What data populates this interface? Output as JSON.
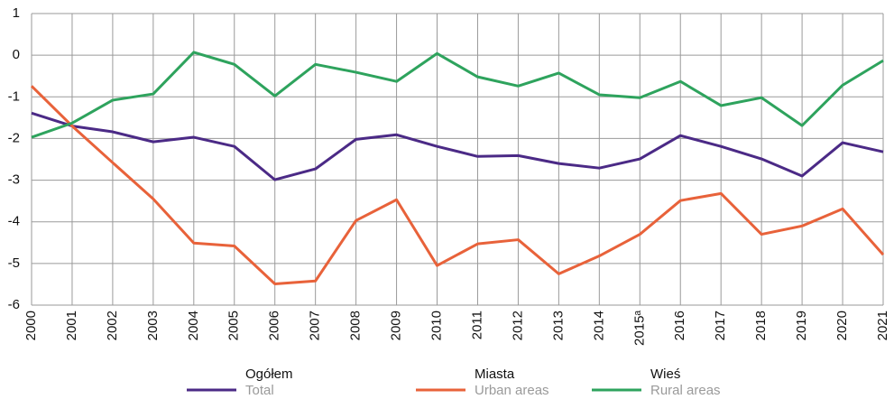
{
  "chart_data": {
    "type": "line",
    "categories": [
      "2000",
      "2001",
      "2002",
      "2003",
      "2004",
      "2005",
      "2006",
      "2007",
      "2008",
      "2009",
      "2010",
      "2011",
      "2012",
      "2013",
      "2014",
      "2015ᵃ",
      "2016",
      "2017",
      "2018",
      "2019",
      "2020",
      "2021"
    ],
    "series": [
      {
        "name": "Ogółem",
        "name_en": "Total",
        "color": "#4b2a86",
        "values": [
          -1.39,
          -1.7,
          -1.84,
          -2.08,
          -1.97,
          -2.19,
          -2.99,
          -2.73,
          -2.02,
          -1.91,
          -2.19,
          -2.43,
          -2.41,
          -2.6,
          -2.71,
          -2.49,
          -1.93,
          -2.19,
          -2.49,
          -2.9,
          -2.1,
          -2.32
        ]
      },
      {
        "name": "Miasta",
        "name_en": "Urban areas",
        "color": "#e8623a",
        "values": [
          -0.74,
          -1.7,
          -2.58,
          -3.45,
          -4.51,
          -4.58,
          -5.49,
          -5.42,
          -3.97,
          -3.47,
          -5.05,
          -4.53,
          -4.43,
          -5.25,
          -4.82,
          -4.3,
          -3.49,
          -3.32,
          -4.3,
          -4.1,
          -3.69,
          -4.79
        ]
      },
      {
        "name": "Wieś",
        "name_en": "Rural areas",
        "color": "#2ea35d",
        "values": [
          -1.97,
          -1.63,
          -1.08,
          -0.93,
          0.07,
          -0.22,
          -0.98,
          -0.22,
          -0.41,
          -0.63,
          0.04,
          -0.52,
          -0.74,
          -0.43,
          -0.95,
          -1.02,
          -0.63,
          -1.21,
          -1.02,
          -1.69,
          -0.72,
          -0.13
        ]
      }
    ],
    "ylim": [
      -6,
      1
    ],
    "yticks": [
      -6,
      -5,
      -4,
      -3,
      -2,
      -1,
      0,
      1
    ],
    "grid": true
  }
}
